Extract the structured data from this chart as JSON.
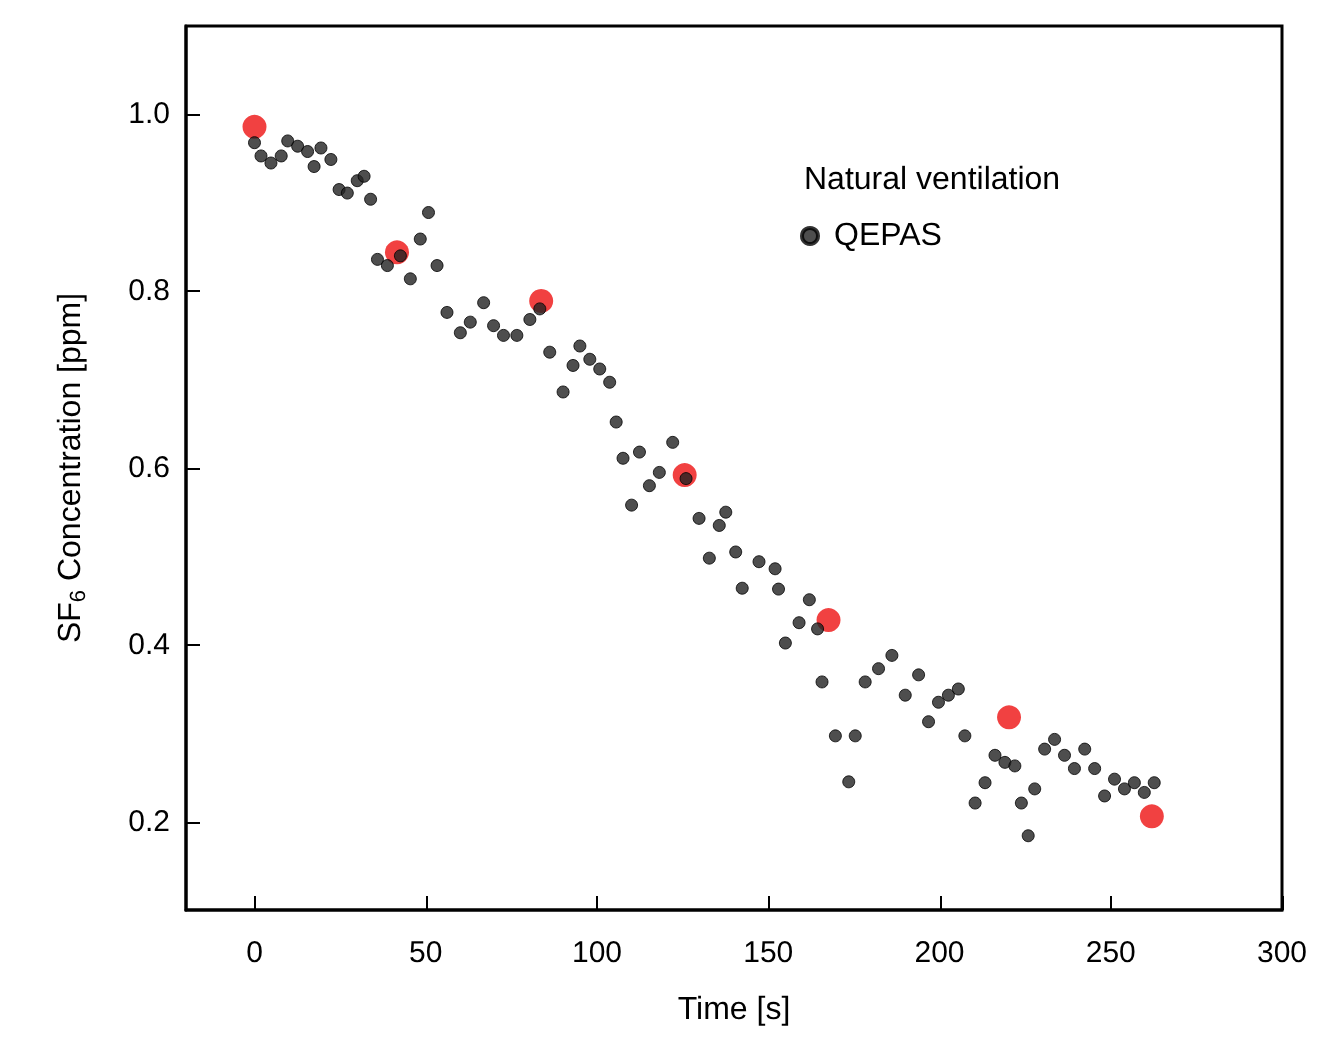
{
  "chart_data": {
    "type": "scatter",
    "xlabel": "Time [s]",
    "ylabel": "SF$_{6}$ Concentration [ppm]",
    "legend_title": "Natural ventilation",
    "legend": "top right",
    "marker": "circle",
    "grid": false,
    "xlim": [
      -20,
      300
    ],
    "xticks": [
      0,
      50,
      100,
      150,
      200,
      250,
      300
    ],
    "ylim": [
      0.1,
      1.1
    ],
    "yticks": [
      0.2,
      0.4,
      0.6,
      0.8,
      {
        "value": 1,
        "label": "1.0"
      }
    ],
    "series": [
      {
        "name": "QEPAS",
        "color": "#222222",
        "x": [
          0,
          1.9,
          4.8,
          7.8,
          9.7,
          12.6,
          15.5,
          17.4,
          19.4,
          22.3,
          24.7,
          27.1,
          30,
          32,
          33.9,
          35.9,
          38.8,
          42.6,
          45.5,
          48.4,
          50.8,
          53.3,
          56.2,
          60.1,
          63,
          66.9,
          69.8,
          72.7,
          76.6,
          80.4,
          83.3,
          86.2,
          90.1,
          93,
          95,
          97.9,
          100.8,
          103.7,
          105.6,
          107.6,
          110.1,
          112.4,
          115.3,
          118.2,
          122.1,
          126,
          129.8,
          132.8,
          135.7,
          137.6,
          140.5,
          142.4,
          147.3,
          152,
          153,
          155,
          159,
          162,
          164.4,
          165.7,
          169.6,
          173.5,
          175.4,
          178.3,
          182.2,
          186.1,
          190,
          193.9,
          196.8,
          199.7,
          202.6,
          205.5,
          207.4,
          210.4,
          213.3,
          216.2,
          219.1,
          222,
          223.9,
          225.9,
          227.8,
          230.7,
          233.6,
          236.5,
          239.4,
          242.4,
          245.3,
          248.2,
          251.1,
          254,
          256.9,
          259.8,
          262.7
        ],
        "values": [
          0.968,
          0.953,
          0.945,
          0.953,
          0.97,
          0.964,
          0.958,
          0.941,
          0.962,
          0.949,
          0.915,
          0.911,
          0.925,
          0.93,
          0.904,
          0.836,
          0.829,
          0.84,
          0.814,
          0.859,
          0.889,
          0.829,
          0.776,
          0.753,
          0.765,
          0.787,
          0.761,
          0.75,
          0.75,
          0.768,
          0.78,
          0.731,
          0.686,
          0.716,
          0.738,
          0.723,
          0.712,
          0.697,
          0.652,
          0.611,
          0.558,
          0.618,
          0.58,
          0.595,
          0.629,
          0.588,
          0.543,
          0.498,
          0.535,
          0.55,
          0.505,
          0.464,
          0.494,
          0.486,
          0.463,
          0.402,
          0.425,
          0.451,
          0.418,
          0.358,
          0.297,
          0.245,
          0.297,
          0.358,
          0.373,
          0.388,
          0.343,
          0.366,
          0.313,
          0.335,
          0.343,
          0.35,
          0.297,
          0.221,
          0.244,
          0.275,
          0.267,
          0.263,
          0.221,
          0.184,
          0.237,
          0.282,
          0.293,
          0.275,
          0.26,
          0.282,
          0.26,
          0.229,
          0.248,
          0.237,
          0.244,
          0.233,
          0.244
        ]
      },
      {
        "color": "#ee1111",
        "x": [
          0,
          41.6,
          83.7,
          125.6,
          167.6,
          220.3,
          262
        ],
        "values": [
          0.986,
          0.844,
          0.789,
          0.592,
          0.428,
          0.318,
          0.206
        ]
      }
    ]
  }
}
